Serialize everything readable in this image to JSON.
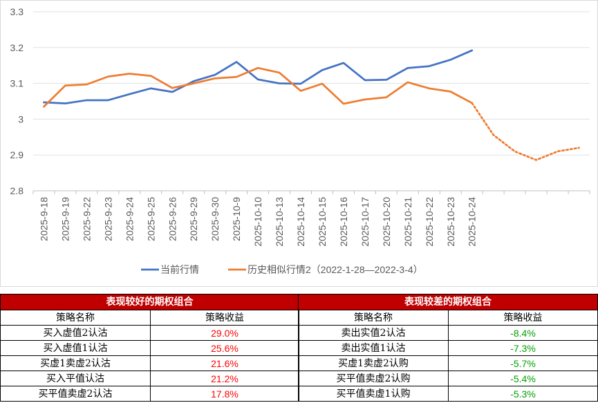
{
  "chart_data": {
    "type": "line",
    "categories": [
      "2025-9-18",
      "2025-9-19",
      "2025-9-22",
      "2025-9-23",
      "2025-9-24",
      "2025-9-25",
      "2025-9-26",
      "2025-9-29",
      "2025-9-30",
      "2025-10-9",
      "2025-10-10",
      "2025-10-13",
      "2025-10-14",
      "2025-10-15",
      "2025-10-16",
      "2025-10-17",
      "2025-10-20",
      "2025-10-21",
      "2025-10-22",
      "2025-10-23",
      "2025-10-24",
      "",
      "",
      "",
      "",
      ""
    ],
    "series": [
      {
        "name": "当前行情",
        "color": "#4472c4",
        "style": "solid",
        "values": [
          3.047,
          3.044,
          3.053,
          3.053,
          3.07,
          3.086,
          3.076,
          3.106,
          3.124,
          3.16,
          3.111,
          3.1,
          3.099,
          3.137,
          3.157,
          3.109,
          3.11,
          3.143,
          3.148,
          3.166,
          3.192,
          null,
          null,
          null,
          null,
          null
        ]
      },
      {
        "name": "历史相似行情2（2022-1-28—2022-3-4）",
        "color": "#ed7d31",
        "style": "solid",
        "values": [
          3.035,
          3.094,
          3.097,
          3.119,
          3.127,
          3.121,
          3.087,
          3.1,
          3.114,
          3.118,
          3.143,
          3.13,
          3.079,
          3.099,
          3.043,
          3.055,
          3.061,
          3.103,
          3.086,
          3.077,
          3.045,
          2.956,
          2.91,
          2.886,
          2.91,
          2.92
        ]
      }
    ],
    "ylim": [
      2.8,
      3.3
    ],
    "yticks": [
      "2.8",
      "2.9",
      "3",
      "3.1",
      "3.2",
      "3.3"
    ],
    "forecast_start_index": 20,
    "legend_position": "bottom"
  },
  "tables": {
    "good": {
      "title": "表现较好的期权组合",
      "headers": [
        "策略名称",
        "策略收益"
      ],
      "rows": [
        [
          "买入虚值2认沽",
          "29.0%"
        ],
        [
          "买入虚值1认沽",
          "25.6%"
        ],
        [
          "买虚1卖虚2认沽",
          "21.6%"
        ],
        [
          "买入平值认沽",
          "21.2%"
        ],
        [
          "买平值卖虚2认沽",
          "17.8%"
        ]
      ]
    },
    "bad": {
      "title": "表现较差的期权组合",
      "headers": [
        "策略名称",
        "策略收益"
      ],
      "rows": [
        [
          "卖出实值2认沽",
          "-8.4%"
        ],
        [
          "卖出实值1认沽",
          "-7.3%"
        ],
        [
          "买虚1卖虚2认购",
          "-5.7%"
        ],
        [
          "买平值卖虚2认购",
          "-5.4%"
        ],
        [
          "买平值卖虚1认购",
          "-5.3%"
        ]
      ]
    }
  }
}
